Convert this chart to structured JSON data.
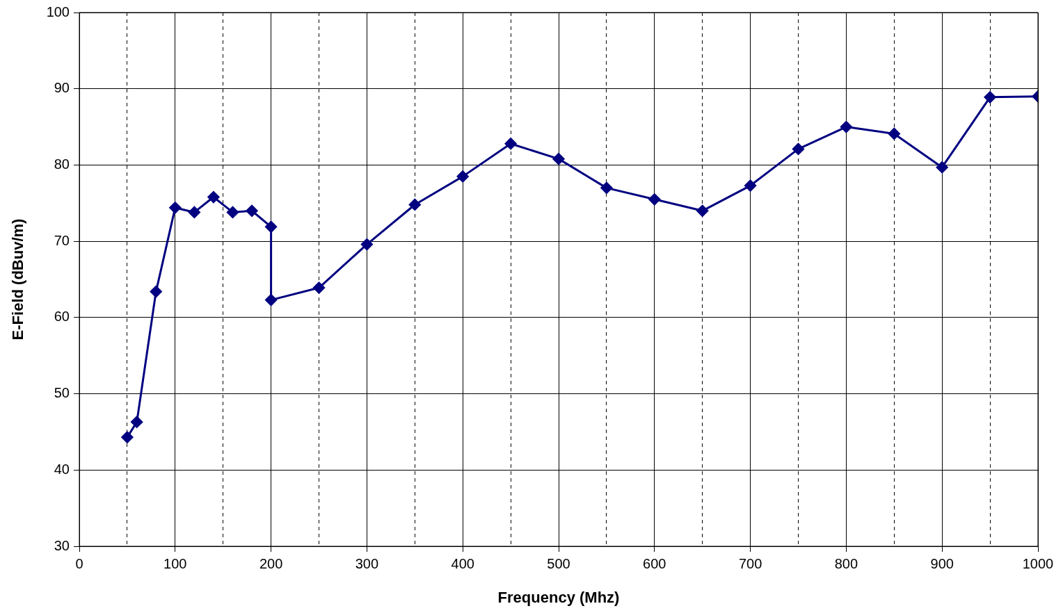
{
  "chart_data": {
    "type": "line",
    "xlabel": "Frequency (Mhz)",
    "ylabel": "E-Field (dBuv/m)",
    "x": [
      50,
      60,
      80,
      100,
      120,
      140,
      160,
      180,
      200,
      200,
      250,
      300,
      350,
      400,
      450,
      500,
      550,
      600,
      650,
      700,
      750,
      800,
      850,
      900,
      950,
      1000
    ],
    "series": [
      {
        "color": "#000080",
        "values": [
          44.3,
          46.3,
          63.4,
          74.4,
          73.8,
          75.8,
          73.8,
          74.0,
          71.9,
          62.3,
          63.9,
          69.6,
          74.8,
          78.5,
          82.8,
          80.8,
          77.0,
          75.5,
          74.0,
          77.3,
          82.1,
          85.0,
          84.1,
          79.7,
          88.9,
          89.0
        ]
      }
    ],
    "xlim": [
      0,
      1000
    ],
    "xticks": [
      0,
      {
        "value": 50,
        "label": null
      },
      100,
      {
        "value": 150,
        "label": null
      },
      200,
      {
        "value": 250,
        "label": null
      },
      300,
      {
        "value": 350,
        "label": null
      },
      400,
      {
        "value": 450,
        "label": null
      },
      500,
      {
        "value": 550,
        "label": null
      },
      600,
      {
        "value": 650,
        "label": null
      },
      700,
      {
        "value": 750,
        "label": null
      },
      800,
      {
        "value": 850,
        "label": null
      },
      900,
      {
        "value": 950,
        "label": null
      },
      1000
    ],
    "ylim": [
      30,
      100
    ],
    "yticks": [
      30,
      40,
      50,
      60,
      70,
      80,
      90,
      100
    ],
    "grid": true,
    "legend": false,
    "marker": "diamond",
    "line_style": "solid"
  }
}
